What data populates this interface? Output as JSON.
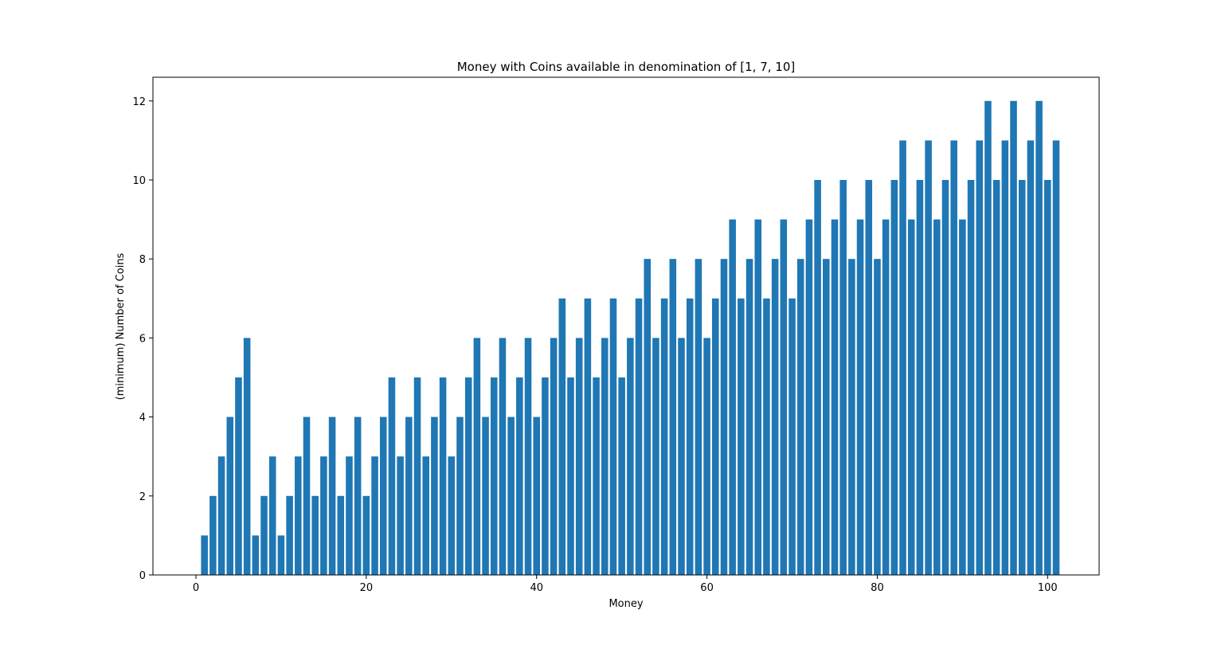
{
  "chart_data": {
    "type": "bar",
    "title": "Money with Coins available in denomination of [1, 7, 10]",
    "xlabel": "Money",
    "ylabel": "(minimum) Number of Coins",
    "xlim": [
      -5.05,
      106.05
    ],
    "ylim": [
      0,
      12.6
    ],
    "xticks": [
      0,
      20,
      40,
      60,
      80,
      100
    ],
    "yticks": [
      0,
      2,
      4,
      6,
      8,
      10,
      12
    ],
    "grid": false,
    "bar_color": "#1f77b4",
    "x": [
      1,
      2,
      3,
      4,
      5,
      6,
      7,
      8,
      9,
      10,
      11,
      12,
      13,
      14,
      15,
      16,
      17,
      18,
      19,
      20,
      21,
      22,
      23,
      24,
      25,
      26,
      27,
      28,
      29,
      30,
      31,
      32,
      33,
      34,
      35,
      36,
      37,
      38,
      39,
      40,
      41,
      42,
      43,
      44,
      45,
      46,
      47,
      48,
      49,
      50,
      51,
      52,
      53,
      54,
      55,
      56,
      57,
      58,
      59,
      60,
      61,
      62,
      63,
      64,
      65,
      66,
      67,
      68,
      69,
      70,
      71,
      72,
      73,
      74,
      75,
      76,
      77,
      78,
      79,
      80,
      81,
      82,
      83,
      84,
      85,
      86,
      87,
      88,
      89,
      90,
      91,
      92,
      93,
      94,
      95,
      96,
      97,
      98,
      99,
      100,
      101
    ],
    "values": [
      1,
      2,
      3,
      4,
      5,
      6,
      1,
      2,
      3,
      1,
      2,
      3,
      4,
      2,
      3,
      4,
      2,
      3,
      4,
      2,
      3,
      4,
      5,
      3,
      4,
      5,
      3,
      4,
      5,
      3,
      4,
      5,
      6,
      4,
      5,
      6,
      4,
      5,
      6,
      4,
      5,
      6,
      7,
      5,
      6,
      7,
      5,
      6,
      7,
      5,
      6,
      7,
      8,
      6,
      7,
      8,
      6,
      7,
      8,
      6,
      7,
      8,
      9,
      7,
      8,
      9,
      7,
      8,
      9,
      7,
      8,
      9,
      10,
      8,
      9,
      10,
      8,
      9,
      10,
      8,
      9,
      10,
      11,
      9,
      10,
      11,
      9,
      10,
      11,
      9,
      10,
      11,
      12,
      10,
      11,
      12,
      10,
      11,
      12,
      10,
      11
    ]
  }
}
